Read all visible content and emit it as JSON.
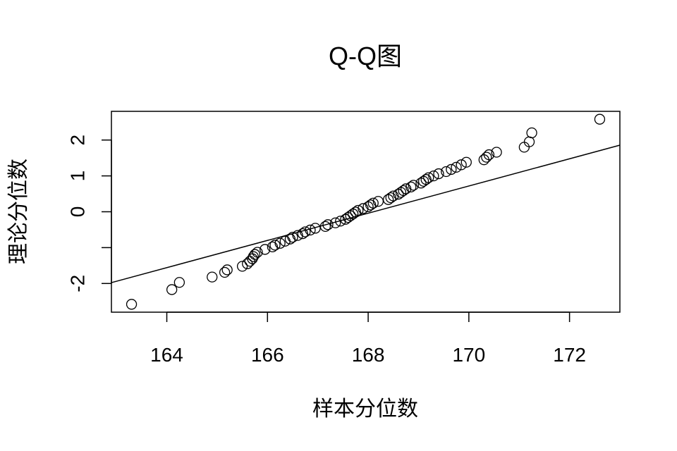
{
  "chart_data": {
    "type": "scatter",
    "title": "Q-Q图",
    "xlabel": "样本分位数",
    "ylabel": "理论分位数",
    "xlim": [
      162.9,
      173.0
    ],
    "ylim": [
      -2.8,
      2.8
    ],
    "x_ticks": [
      164,
      166,
      168,
      170,
      172
    ],
    "x_tick_labels": [
      "164",
      "166",
      "168",
      "170",
      "172"
    ],
    "y_ticks": [
      -2,
      -1,
      0,
      1,
      2
    ],
    "y_tick_labels": [
      "-2",
      "",
      "0",
      "1",
      "2"
    ],
    "grid": false,
    "legend": "none",
    "reference_line": {
      "intercept": -63.78,
      "slope": 0.3794
    },
    "marker": "open-circle",
    "series": [
      {
        "points": [
          [
            163.3,
            -2.58
          ],
          [
            164.1,
            -2.17
          ],
          [
            164.25,
            -1.97
          ],
          [
            164.9,
            -1.82
          ],
          [
            165.15,
            -1.69
          ],
          [
            165.2,
            -1.62
          ],
          [
            165.5,
            -1.52
          ],
          [
            165.6,
            -1.45
          ],
          [
            165.65,
            -1.38
          ],
          [
            165.7,
            -1.31
          ],
          [
            165.72,
            -1.25
          ],
          [
            165.75,
            -1.19
          ],
          [
            165.8,
            -1.13
          ],
          [
            165.95,
            -1.05
          ],
          [
            166.1,
            -0.98
          ],
          [
            166.15,
            -0.93
          ],
          [
            166.25,
            -0.88
          ],
          [
            166.35,
            -0.82
          ],
          [
            166.45,
            -0.76
          ],
          [
            166.5,
            -0.71
          ],
          [
            166.6,
            -0.66
          ],
          [
            166.7,
            -0.61
          ],
          [
            166.75,
            -0.56
          ],
          [
            166.85,
            -0.51
          ],
          [
            166.95,
            -0.46
          ],
          [
            167.15,
            -0.41
          ],
          [
            167.2,
            -0.36
          ],
          [
            167.35,
            -0.31
          ],
          [
            167.45,
            -0.26
          ],
          [
            167.55,
            -0.21
          ],
          [
            167.6,
            -0.16
          ],
          [
            167.65,
            -0.11
          ],
          [
            167.7,
            -0.06
          ],
          [
            167.75,
            -0.01
          ],
          [
            167.8,
            0.04
          ],
          [
            167.9,
            0.09
          ],
          [
            168.0,
            0.14
          ],
          [
            168.05,
            0.19
          ],
          [
            168.1,
            0.24
          ],
          [
            168.2,
            0.29
          ],
          [
            168.4,
            0.34
          ],
          [
            168.45,
            0.39
          ],
          [
            168.5,
            0.44
          ],
          [
            168.6,
            0.49
          ],
          [
            168.65,
            0.54
          ],
          [
            168.7,
            0.59
          ],
          [
            168.75,
            0.64
          ],
          [
            168.85,
            0.69
          ],
          [
            168.9,
            0.74
          ],
          [
            169.05,
            0.8
          ],
          [
            169.1,
            0.85
          ],
          [
            169.15,
            0.9
          ],
          [
            169.2,
            0.95
          ],
          [
            169.3,
            1.0
          ],
          [
            169.4,
            1.06
          ],
          [
            169.55,
            1.12
          ],
          [
            169.65,
            1.18
          ],
          [
            169.75,
            1.24
          ],
          [
            169.85,
            1.31
          ],
          [
            169.95,
            1.38
          ],
          [
            170.3,
            1.45
          ],
          [
            170.35,
            1.52
          ],
          [
            170.4,
            1.59
          ],
          [
            170.55,
            1.66
          ],
          [
            171.1,
            1.8
          ],
          [
            171.2,
            1.95
          ],
          [
            171.25,
            2.2
          ],
          [
            172.6,
            2.58
          ]
        ]
      }
    ]
  }
}
